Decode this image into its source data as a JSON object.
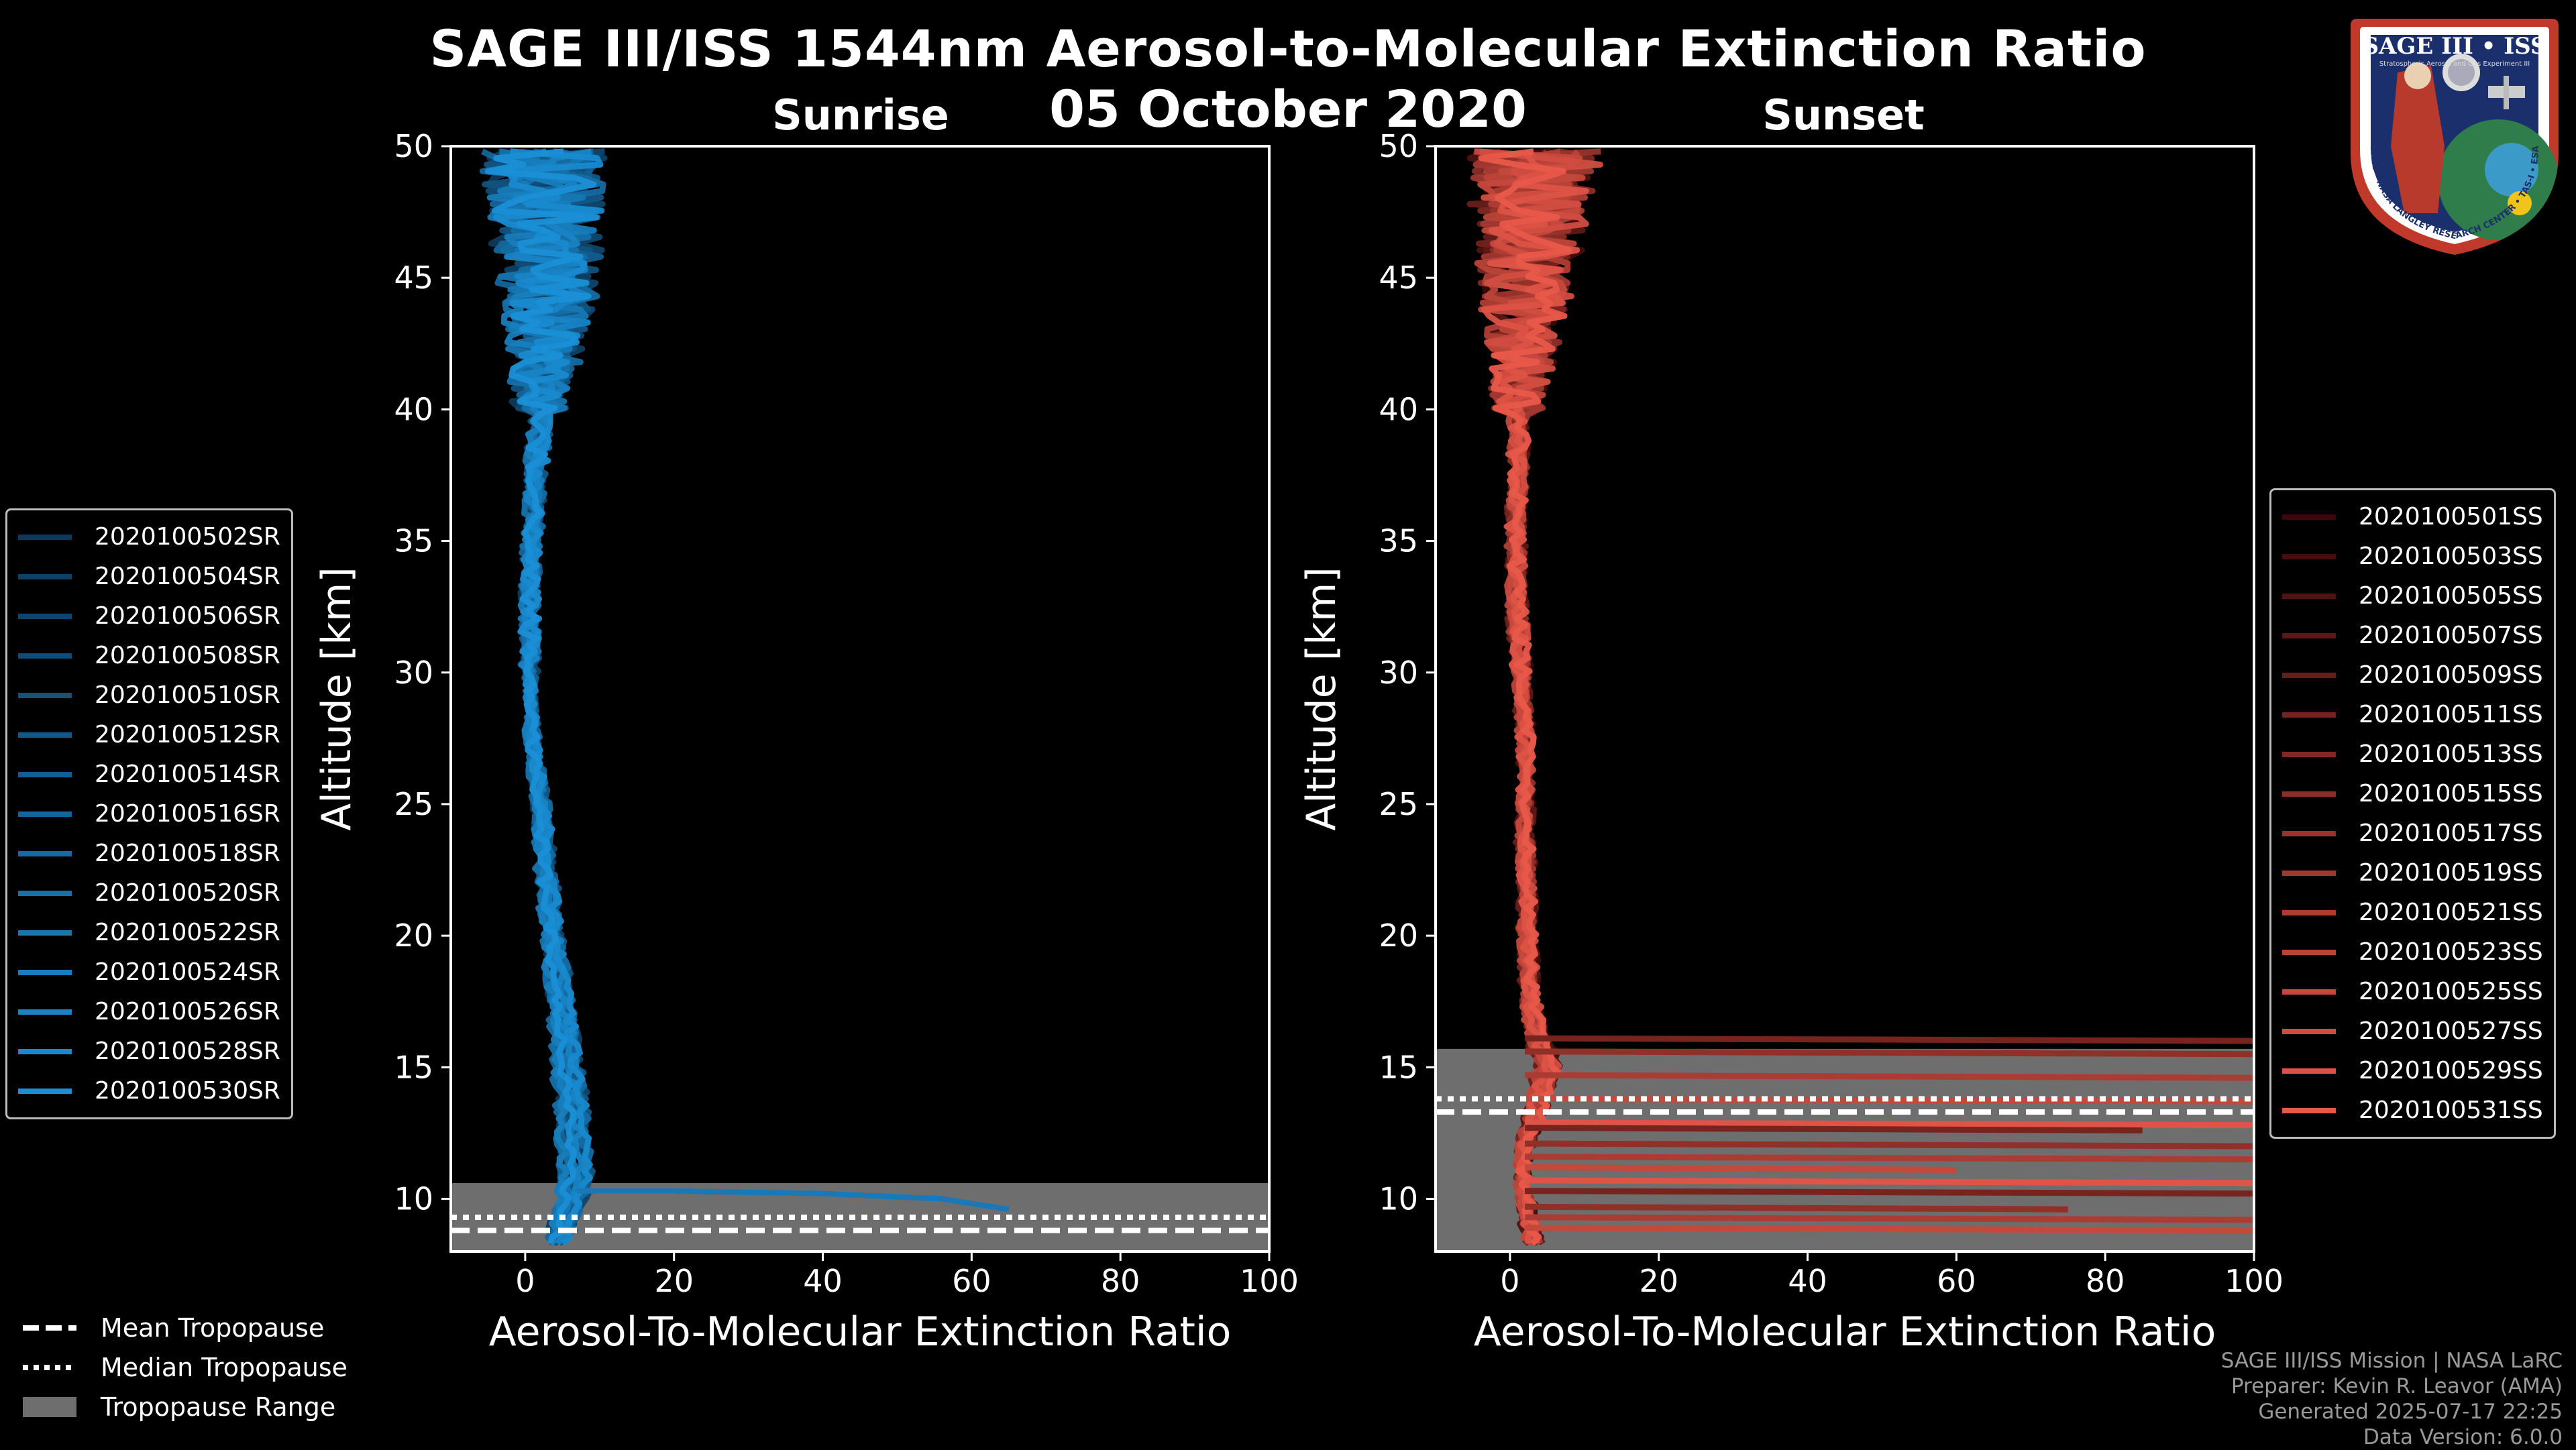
{
  "title": "SAGE III/ISS 1544nm Aerosol-to-Molecular Extinction Ratio",
  "subtitle": "05 October 2020",
  "colors": {
    "sunrise_accent": "#1e88d0",
    "sunset_accent": "#e05040",
    "tropopause_range": "#6e6e6e",
    "footer_text": "#999999"
  },
  "chart_data": [
    {
      "type": "line",
      "title": "Sunrise",
      "xlabel": "Aerosol-To-Molecular Extinction Ratio",
      "ylabel": "Altitude [km]",
      "xlim": [
        -10,
        100
      ],
      "ylim": [
        8,
        50
      ],
      "xticks": [
        0,
        20,
        40,
        60,
        80,
        100
      ],
      "yticks": [
        10,
        15,
        20,
        25,
        30,
        35,
        40,
        45,
        50
      ],
      "tropopause": {
        "mean": 8.8,
        "median": 9.3,
        "range": [
          8,
          10.6
        ]
      },
      "legend_position": "left",
      "series_names": [
        "2020100502SR",
        "2020100504SR",
        "2020100506SR",
        "2020100508SR",
        "2020100510SR",
        "2020100512SR",
        "2020100514SR",
        "2020100516SR",
        "2020100518SR",
        "2020100520SR",
        "2020100522SR",
        "2020100524SR",
        "2020100526SR",
        "2020100528SR",
        "2020100530SR"
      ],
      "profile_shape": {
        "alt": [
          8.3,
          9,
          10,
          11,
          12,
          13,
          14,
          15,
          16,
          17,
          18,
          19,
          20,
          21,
          22,
          23,
          24,
          25,
          26,
          28,
          30,
          32,
          34,
          36,
          38,
          40,
          42,
          44,
          46,
          48,
          50
        ],
        "ratio": [
          4,
          5,
          6,
          6.5,
          6.5,
          6.2,
          6,
          5.5,
          5.2,
          4.8,
          4.4,
          4,
          3.6,
          3.2,
          2.9,
          2.6,
          2.3,
          2,
          1.5,
          0.8,
          0.6,
          0.6,
          0.7,
          1,
          1.5,
          2,
          2.5,
          3,
          3,
          2.5,
          2.5
        ]
      },
      "spike": {
        "alt": [
          10.3,
          10.3,
          10.2,
          10.0,
          9.6
        ],
        "ratio": [
          7,
          20,
          40,
          56,
          65
        ]
      }
    },
    {
      "type": "line",
      "title": "Sunset",
      "xlabel": "Aerosol-To-Molecular Extinction Ratio",
      "ylabel": "Altitude [km]",
      "xlim": [
        -10,
        100
      ],
      "ylim": [
        8,
        50
      ],
      "xticks": [
        0,
        20,
        40,
        60,
        80,
        100
      ],
      "yticks": [
        10,
        15,
        20,
        25,
        30,
        35,
        40,
        45,
        50
      ],
      "tropopause": {
        "mean": 13.3,
        "median": 13.8,
        "range": [
          8,
          15.7
        ]
      },
      "legend_position": "right",
      "series_names": [
        "2020100501SS",
        "2020100503SS",
        "2020100505SS",
        "2020100507SS",
        "2020100509SS",
        "2020100511SS",
        "2020100513SS",
        "2020100515SS",
        "2020100517SS",
        "2020100519SS",
        "2020100521SS",
        "2020100523SS",
        "2020100525SS",
        "2020100527SS",
        "2020100529SS",
        "2020100531SS"
      ],
      "profile_shape": {
        "alt": [
          8.3,
          9,
          10,
          11,
          12,
          13,
          14,
          15,
          16,
          17,
          18,
          20,
          22,
          24,
          26,
          28,
          30,
          32,
          34,
          36,
          38,
          40,
          42,
          44,
          46,
          48,
          50
        ],
        "ratio": [
          3,
          2.5,
          2,
          1.5,
          2,
          3,
          4,
          5,
          4,
          3,
          2.5,
          2.3,
          2.2,
          2,
          2,
          2,
          1.5,
          1,
          0.8,
          0.8,
          1,
          1.2,
          1.5,
          2,
          2.5,
          3,
          3
        ]
      },
      "horizontal_streaks": [
        {
          "alt": 16.0,
          "max": 100
        },
        {
          "alt": 15.5,
          "max": 100
        },
        {
          "alt": 14.6,
          "max": 100
        },
        {
          "alt": 13.7,
          "max": 100
        },
        {
          "alt": 12.8,
          "max": 100
        },
        {
          "alt": 12.6,
          "max": 85
        },
        {
          "alt": 12.0,
          "max": 100
        },
        {
          "alt": 11.5,
          "max": 100
        },
        {
          "alt": 11.1,
          "max": 60
        },
        {
          "alt": 10.6,
          "max": 100
        },
        {
          "alt": 10.2,
          "max": 100
        },
        {
          "alt": 9.6,
          "max": 75
        },
        {
          "alt": 9.2,
          "max": 100
        },
        {
          "alt": 8.8,
          "max": 100
        }
      ]
    }
  ],
  "bottom_legend": {
    "mean": "Mean Tropopause",
    "median": "Median Tropopause",
    "range": "Tropopause Range"
  },
  "footer": {
    "line1": "SAGE III/ISS Mission | NASA LaRC",
    "line2": "Preparer: Kevin R. Leavor (AMA)",
    "line3": "Generated 2025-07-17 22:25",
    "line4": "Data Version: 6.0.0"
  },
  "logo": {
    "top_text": "SAGE III • ISS",
    "ring_text": "BALL • NASA LANGLEY RESEARCH CENTER • TAS-I • ESA",
    "small_text": "Stratospheric Aerosol and Gas Experiment III"
  }
}
